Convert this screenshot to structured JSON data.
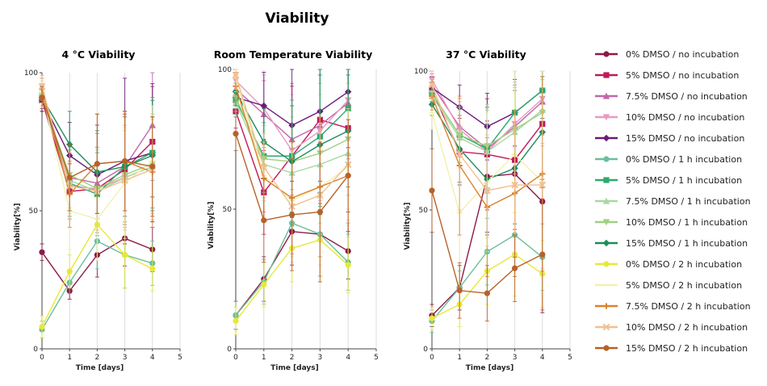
{
  "title": "Viability",
  "legend": [
    {
      "name": "0% DMSO / no incubation",
      "color": "#8b1a4a",
      "marker": "circle"
    },
    {
      "name": "5% DMSO / no incubation",
      "color": "#c2185b",
      "marker": "square"
    },
    {
      "name": "7.5% DMSO / no incubation",
      "color": "#c266a8",
      "marker": "triangle-up"
    },
    {
      "name": "10% DMSO / no incubation",
      "color": "#e89ac2",
      "marker": "triangle-down"
    },
    {
      "name": "15% DMSO / no incubation",
      "color": "#6a1b7a",
      "marker": "diamond"
    },
    {
      "name": "0% DMSO / 1 h incubation",
      "color": "#6bbf9a",
      "marker": "circle"
    },
    {
      "name": "5% DMSO / 1 h incubation",
      "color": "#2eaa6e",
      "marker": "square"
    },
    {
      "name": "7.5% DMSO / 1 h incubation",
      "color": "#a8d8a0",
      "marker": "triangle-up"
    },
    {
      "name": "10% DMSO / 1 h incubation",
      "color": "#a0d080",
      "marker": "triangle-down"
    },
    {
      "name": "15% DMSO / 1 h incubation",
      "color": "#1e8c5a",
      "marker": "diamond"
    },
    {
      "name": "0% DMSO / 2 h incubation",
      "color": "#e8e83a",
      "marker": "circle"
    },
    {
      "name": "5% DMSO / 2 h incubation",
      "color": "#f2f0b0",
      "marker": "cross"
    },
    {
      "name": "7.5% DMSO / 2 h incubation",
      "color": "#d9822b",
      "marker": "plus"
    },
    {
      "name": "10% DMSO / 2 h incubation",
      "color": "#f0c090",
      "marker": "x"
    },
    {
      "name": "15% DMSO / 2 h incubation",
      "color": "#b5622a",
      "marker": "circle"
    }
  ],
  "chart_data": [
    {
      "type": "line",
      "title": "4 °C Viability",
      "xlabel": "Time [days]",
      "ylabel": "Viability[%]",
      "xlim": [
        0,
        5
      ],
      "ylim": [
        0,
        100
      ],
      "xticks": [
        "0",
        "1",
        "2",
        "3",
        "4",
        "5"
      ],
      "yticks": [
        "0",
        "50",
        "100"
      ],
      "x": [
        0,
        1,
        2,
        3,
        4
      ],
      "grid": "vertical",
      "series": [
        {
          "name": "0% DMSO / no incubation",
          "values": [
            35,
            21,
            34,
            40,
            36
          ],
          "err": [
            3,
            3,
            8,
            10,
            8
          ]
        },
        {
          "name": "5% DMSO / no incubation",
          "values": [
            90,
            57,
            58,
            65,
            75
          ],
          "err": [
            4,
            10,
            15,
            20,
            20
          ]
        },
        {
          "name": "7.5% DMSO / no incubation",
          "values": [
            91,
            62,
            60,
            66,
            81
          ],
          "err": [
            4,
            12,
            18,
            20,
            20
          ]
        },
        {
          "name": "10% DMSO / no incubation",
          "values": [
            92,
            59,
            58,
            62,
            66
          ],
          "err": [
            4,
            12,
            15,
            18,
            18
          ]
        },
        {
          "name": "15% DMSO / no incubation",
          "values": [
            90,
            70,
            63,
            68,
            71
          ],
          "err": [
            4,
            12,
            18,
            30,
            25
          ]
        },
        {
          "name": "0% DMSO / 1 h incubation",
          "values": [
            7,
            24,
            39,
            34,
            31
          ],
          "err": [
            3,
            4,
            10,
            12,
            8
          ]
        },
        {
          "name": "5% DMSO / 1 h incubation",
          "values": [
            91,
            60,
            56,
            66,
            71
          ],
          "err": [
            4,
            12,
            15,
            20,
            20
          ]
        },
        {
          "name": "7.5% DMSO / 1 h incubation",
          "values": [
            93,
            61,
            57,
            62,
            66
          ],
          "err": [
            4,
            12,
            15,
            18,
            18
          ]
        },
        {
          "name": "10% DMSO / 1 h incubation",
          "values": [
            91,
            63,
            58,
            63,
            67
          ],
          "err": [
            4,
            12,
            15,
            18,
            18
          ]
        },
        {
          "name": "15% DMSO / 1 h incubation",
          "values": [
            91,
            74,
            64,
            66,
            70
          ],
          "err": [
            4,
            12,
            15,
            18,
            20
          ]
        },
        {
          "name": "0% DMSO / 2 h incubation",
          "values": [
            8,
            28,
            45,
            34,
            29
          ],
          "err": [
            4,
            6,
            10,
            12,
            8
          ]
        },
        {
          "name": "5% DMSO / 2 h incubation",
          "values": [
            93,
            50,
            47,
            60,
            68
          ],
          "err": [
            4,
            14,
            15,
            20,
            20
          ]
        },
        {
          "name": "7.5% DMSO / 2 h incubation",
          "values": [
            94,
            56,
            67,
            68,
            64
          ],
          "err": [
            4,
            12,
            18,
            18,
            20
          ]
        },
        {
          "name": "10% DMSO / 2 h incubation",
          "values": [
            95,
            59,
            57,
            61,
            65
          ],
          "err": [
            4,
            12,
            15,
            18,
            18
          ]
        },
        {
          "name": "15% DMSO / 2 h incubation",
          "values": [
            91,
            62,
            67,
            68,
            66
          ],
          "err": [
            4,
            12,
            18,
            18,
            18
          ]
        }
      ]
    },
    {
      "type": "line",
      "title": "Room Temperature Viability",
      "xlabel": "Time [days]",
      "ylabel": "Viability[%]",
      "xlim": [
        0,
        5
      ],
      "ylim": [
        0,
        100
      ],
      "xticks": [
        "0",
        "1",
        "2",
        "3",
        "4",
        "5"
      ],
      "yticks": [
        "0",
        "50",
        "100"
      ],
      "x": [
        0,
        1,
        2,
        3,
        4
      ],
      "grid": "vertical",
      "series": [
        {
          "name": "0% DMSO / no incubation",
          "values": [
            12,
            25,
            42,
            41,
            35
          ],
          "err": [
            5,
            8,
            12,
            15,
            10
          ]
        },
        {
          "name": "5% DMSO / no incubation",
          "values": [
            85,
            56,
            69,
            82,
            79
          ],
          "err": [
            6,
            15,
            25,
            30,
            30
          ]
        },
        {
          "name": "7.5% DMSO / no incubation",
          "values": [
            93,
            84,
            75,
            80,
            88
          ],
          "err": [
            5,
            12,
            20,
            25,
            20
          ]
        },
        {
          "name": "10% DMSO / no incubation",
          "values": [
            96,
            86,
            71,
            78,
            89
          ],
          "err": [
            5,
            12,
            20,
            25,
            20
          ]
        },
        {
          "name": "15% DMSO / no incubation",
          "values": [
            90,
            87,
            80,
            85,
            92
          ],
          "err": [
            5,
            12,
            20,
            25,
            20
          ]
        },
        {
          "name": "0% DMSO / 1 h incubation",
          "values": [
            12,
            24,
            45,
            41,
            31
          ],
          "err": [
            5,
            8,
            12,
            15,
            10
          ]
        },
        {
          "name": "5% DMSO / 1 h incubation",
          "values": [
            89,
            69,
            69,
            76,
            86
          ],
          "err": [
            5,
            12,
            20,
            25,
            20
          ]
        },
        {
          "name": "7.5% DMSO / 1 h incubation",
          "values": [
            88,
            66,
            63,
            66,
            70
          ],
          "err": [
            5,
            12,
            20,
            25,
            20
          ]
        },
        {
          "name": "10% DMSO / 1 h incubation",
          "values": [
            90,
            68,
            67,
            70,
            75
          ],
          "err": [
            5,
            12,
            20,
            25,
            20
          ]
        },
        {
          "name": "15% DMSO / 1 h incubation",
          "values": [
            92,
            74,
            67,
            73,
            78
          ],
          "err": [
            5,
            12,
            20,
            25,
            20
          ]
        },
        {
          "name": "0% DMSO / 2 h incubation",
          "values": [
            10,
            23,
            36,
            39,
            30
          ],
          "err": [
            5,
            8,
            12,
            15,
            10
          ]
        },
        {
          "name": "5% DMSO / 2 h incubation",
          "values": [
            97,
            62,
            53,
            58,
            65
          ],
          "err": [
            5,
            12,
            20,
            25,
            20
          ]
        },
        {
          "name": "7.5% DMSO / 2 h incubation",
          "values": [
            94,
            61,
            54,
            58,
            62
          ],
          "err": [
            5,
            12,
            20,
            25,
            20
          ]
        },
        {
          "name": "10% DMSO / 2 h incubation",
          "values": [
            98,
            65,
            51,
            55,
            66
          ],
          "err": [
            5,
            12,
            20,
            25,
            20
          ]
        },
        {
          "name": "15% DMSO / 2 h incubation",
          "values": [
            77,
            46,
            48,
            49,
            62
          ],
          "err": [
            6,
            15,
            20,
            25,
            20
          ]
        }
      ]
    },
    {
      "type": "line",
      "title": "37 °C Viability",
      "xlabel": "Time [days]",
      "ylabel": "Viability[%]",
      "xlim": [
        0,
        5
      ],
      "ylim": [
        0,
        100
      ],
      "xticks": [
        "0",
        "1",
        "2",
        "3",
        "4",
        "5"
      ],
      "yticks": [
        "0",
        "50",
        "100"
      ],
      "x": [
        0,
        1,
        2,
        3,
        4
      ],
      "grid": "vertical",
      "series": [
        {
          "name": "0% DMSO / no incubation",
          "values": [
            12,
            22,
            62,
            63,
            53
          ],
          "err": [
            4,
            8,
            20,
            30,
            40
          ]
        },
        {
          "name": "5% DMSO / no incubation",
          "values": [
            93,
            71,
            70,
            68,
            81
          ],
          "err": [
            4,
            12,
            20,
            25,
            20
          ]
        },
        {
          "name": "7.5% DMSO / no incubation",
          "values": [
            95,
            80,
            72,
            80,
            89
          ],
          "err": [
            4,
            10,
            15,
            15,
            12
          ]
        },
        {
          "name": "10% DMSO / no incubation",
          "values": [
            97,
            79,
            71,
            81,
            90
          ],
          "err": [
            4,
            10,
            15,
            15,
            12
          ]
        },
        {
          "name": "15% DMSO / no incubation",
          "values": [
            94,
            87,
            80,
            85,
            93
          ],
          "err": [
            4,
            8,
            12,
            12,
            10
          ]
        },
        {
          "name": "0% DMSO / 1 h incubation",
          "values": [
            10,
            22,
            35,
            41,
            33
          ],
          "err": [
            4,
            6,
            12,
            15,
            12
          ]
        },
        {
          "name": "5% DMSO / 1 h incubation",
          "values": [
            92,
            77,
            72,
            85,
            93
          ],
          "err": [
            4,
            10,
            15,
            15,
            10
          ]
        },
        {
          "name": "7.5% DMSO / 1 h incubation",
          "values": [
            91,
            76,
            71,
            78,
            86
          ],
          "err": [
            4,
            10,
            15,
            15,
            12
          ]
        },
        {
          "name": "10% DMSO / 1 h incubation",
          "values": [
            92,
            77,
            73,
            79,
            85
          ],
          "err": [
            4,
            10,
            15,
            15,
            12
          ]
        },
        {
          "name": "15% DMSO / 1 h incubation",
          "values": [
            88,
            72,
            61,
            65,
            78
          ],
          "err": [
            4,
            12,
            20,
            20,
            20
          ]
        },
        {
          "name": "0% DMSO / 2 h incubation",
          "values": [
            11,
            16,
            28,
            34,
            27
          ],
          "err": [
            4,
            8,
            12,
            15,
            12
          ]
        },
        {
          "name": "5% DMSO / 2 h incubation",
          "values": [
            85,
            49,
            60,
            70,
            60
          ],
          "err": [
            6,
            30,
            25,
            30,
            40
          ]
        },
        {
          "name": "7.5% DMSO / 2 h incubation",
          "values": [
            91,
            66,
            51,
            56,
            63
          ],
          "err": [
            5,
            25,
            25,
            30,
            35
          ]
        },
        {
          "name": "10% DMSO / 2 h incubation",
          "values": [
            95,
            70,
            57,
            59,
            59
          ],
          "err": [
            5,
            20,
            20,
            25,
            30
          ]
        },
        {
          "name": "15% DMSO / 2 h incubation",
          "values": [
            57,
            21,
            20,
            29,
            34
          ],
          "err": [
            15,
            10,
            10,
            12,
            20
          ]
        }
      ]
    }
  ]
}
